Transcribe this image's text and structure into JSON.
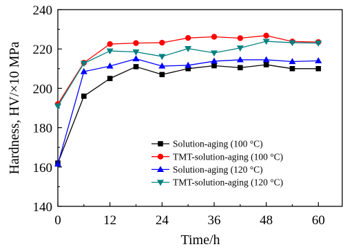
{
  "chart_data": {
    "type": "line",
    "xlabel": "Time/h",
    "ylabel": "Hardness, HV/×10 MPa",
    "xlim": [
      0,
      65.5
    ],
    "ylim": [
      140,
      240
    ],
    "xticks": [
      0,
      12,
      24,
      36,
      48,
      60
    ],
    "yticks": [
      140,
      160,
      180,
      200,
      220,
      240
    ],
    "grid": false,
    "legend_position": "lower-right",
    "x": [
      0,
      6,
      12,
      18,
      24,
      30,
      36,
      42,
      48,
      54,
      60
    ],
    "series": [
      {
        "name": "Solution-aging (100 °C)",
        "color": "#000000",
        "marker": "square",
        "values": [
          162,
          196,
          205,
          211,
          207,
          210,
          211.5,
          210.5,
          212,
          210,
          210
        ]
      },
      {
        "name": "TMT-solution-aging (100 °C)",
        "color": "#ff0000",
        "marker": "circle",
        "values": [
          192,
          213,
          222.5,
          223,
          223.2,
          225.6,
          226.2,
          225.5,
          226.8,
          223.8,
          223.5
        ]
      },
      {
        "name": "Solution-aging (120 °C)",
        "color": "#0000ff",
        "marker": "triangle-up",
        "values": [
          161.5,
          208.5,
          211.3,
          215,
          211.3,
          211.7,
          213.8,
          214.5,
          214.5,
          213.6,
          214
        ]
      },
      {
        "name": "TMT-solution-aging (120 °C)",
        "color": "#008080",
        "marker": "triangle-down",
        "values": [
          191,
          212.7,
          219,
          218.5,
          216.2,
          220.2,
          218,
          220.5,
          223.9,
          223.2,
          223
        ]
      }
    ]
  }
}
